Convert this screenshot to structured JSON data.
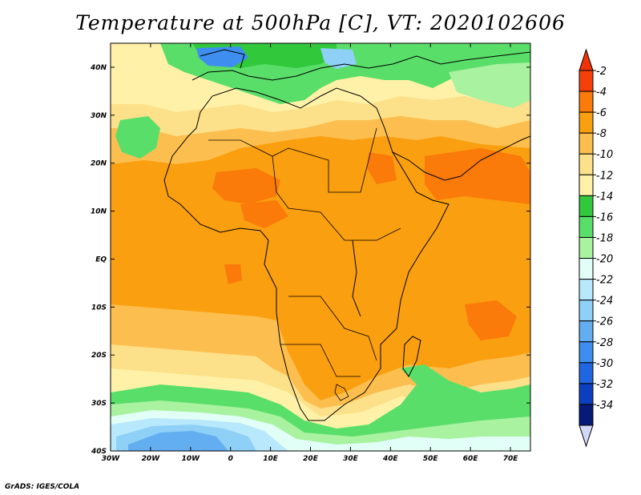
{
  "title": "Temperature at 500hPa [C], VT: 2020102606",
  "credit": "GrADS: IGES/COLA",
  "map": {
    "projection": "latlon",
    "lon_range": [
      -30,
      75
    ],
    "lat_range": [
      -40,
      45
    ],
    "lon_ticks": [
      {
        "value": -30,
        "label": "30W"
      },
      {
        "value": -20,
        "label": "20W"
      },
      {
        "value": -10,
        "label": "10W"
      },
      {
        "value": 0,
        "label": "0"
      },
      {
        "value": 10,
        "label": "10E"
      },
      {
        "value": 20,
        "label": "20E"
      },
      {
        "value": 30,
        "label": "30E"
      },
      {
        "value": 40,
        "label": "40E"
      },
      {
        "value": 50,
        "label": "50E"
      },
      {
        "value": 60,
        "label": "60E"
      },
      {
        "value": 70,
        "label": "70E"
      }
    ],
    "lat_ticks": [
      {
        "value": 40,
        "label": "40N"
      },
      {
        "value": 30,
        "label": "30N"
      },
      {
        "value": 20,
        "label": "20N"
      },
      {
        "value": 10,
        "label": "10N"
      },
      {
        "value": 0,
        "label": "EQ"
      },
      {
        "value": -10,
        "label": "10S"
      },
      {
        "value": -20,
        "label": "20S"
      },
      {
        "value": -30,
        "label": "30S"
      },
      {
        "value": -40,
        "label": "40S"
      }
    ]
  },
  "colorbar": {
    "levels": [
      {
        "label": "-2",
        "color": "#f5400a"
      },
      {
        "label": "-4",
        "color": "#fa7a0a"
      },
      {
        "label": "-6",
        "color": "#fa9f0f"
      },
      {
        "label": "-8",
        "color": "#fcbf4f"
      },
      {
        "label": "-10",
        "color": "#fde08a"
      },
      {
        "label": "-12",
        "color": "#fff2a8"
      },
      {
        "label": "-14",
        "color": "#32c83c"
      },
      {
        "label": "-16",
        "color": "#5ade6a"
      },
      {
        "label": "-18",
        "color": "#a8f2a0"
      },
      {
        "label": "-20",
        "color": "#e1fff6"
      },
      {
        "label": "-22",
        "color": "#b8e8fc"
      },
      {
        "label": "-24",
        "color": "#8fd0f7"
      },
      {
        "label": "-26",
        "color": "#62aef0"
      },
      {
        "label": "-28",
        "color": "#3e8ef0"
      },
      {
        "label": "-30",
        "color": "#1f66e0"
      },
      {
        "label": "-32",
        "color": "#0c3fbf"
      },
      {
        "label": "-34",
        "color": "#061a78"
      }
    ],
    "top_arrow_color": "#f0320a",
    "bottom_arrow_color": "#d4d8f8"
  }
}
